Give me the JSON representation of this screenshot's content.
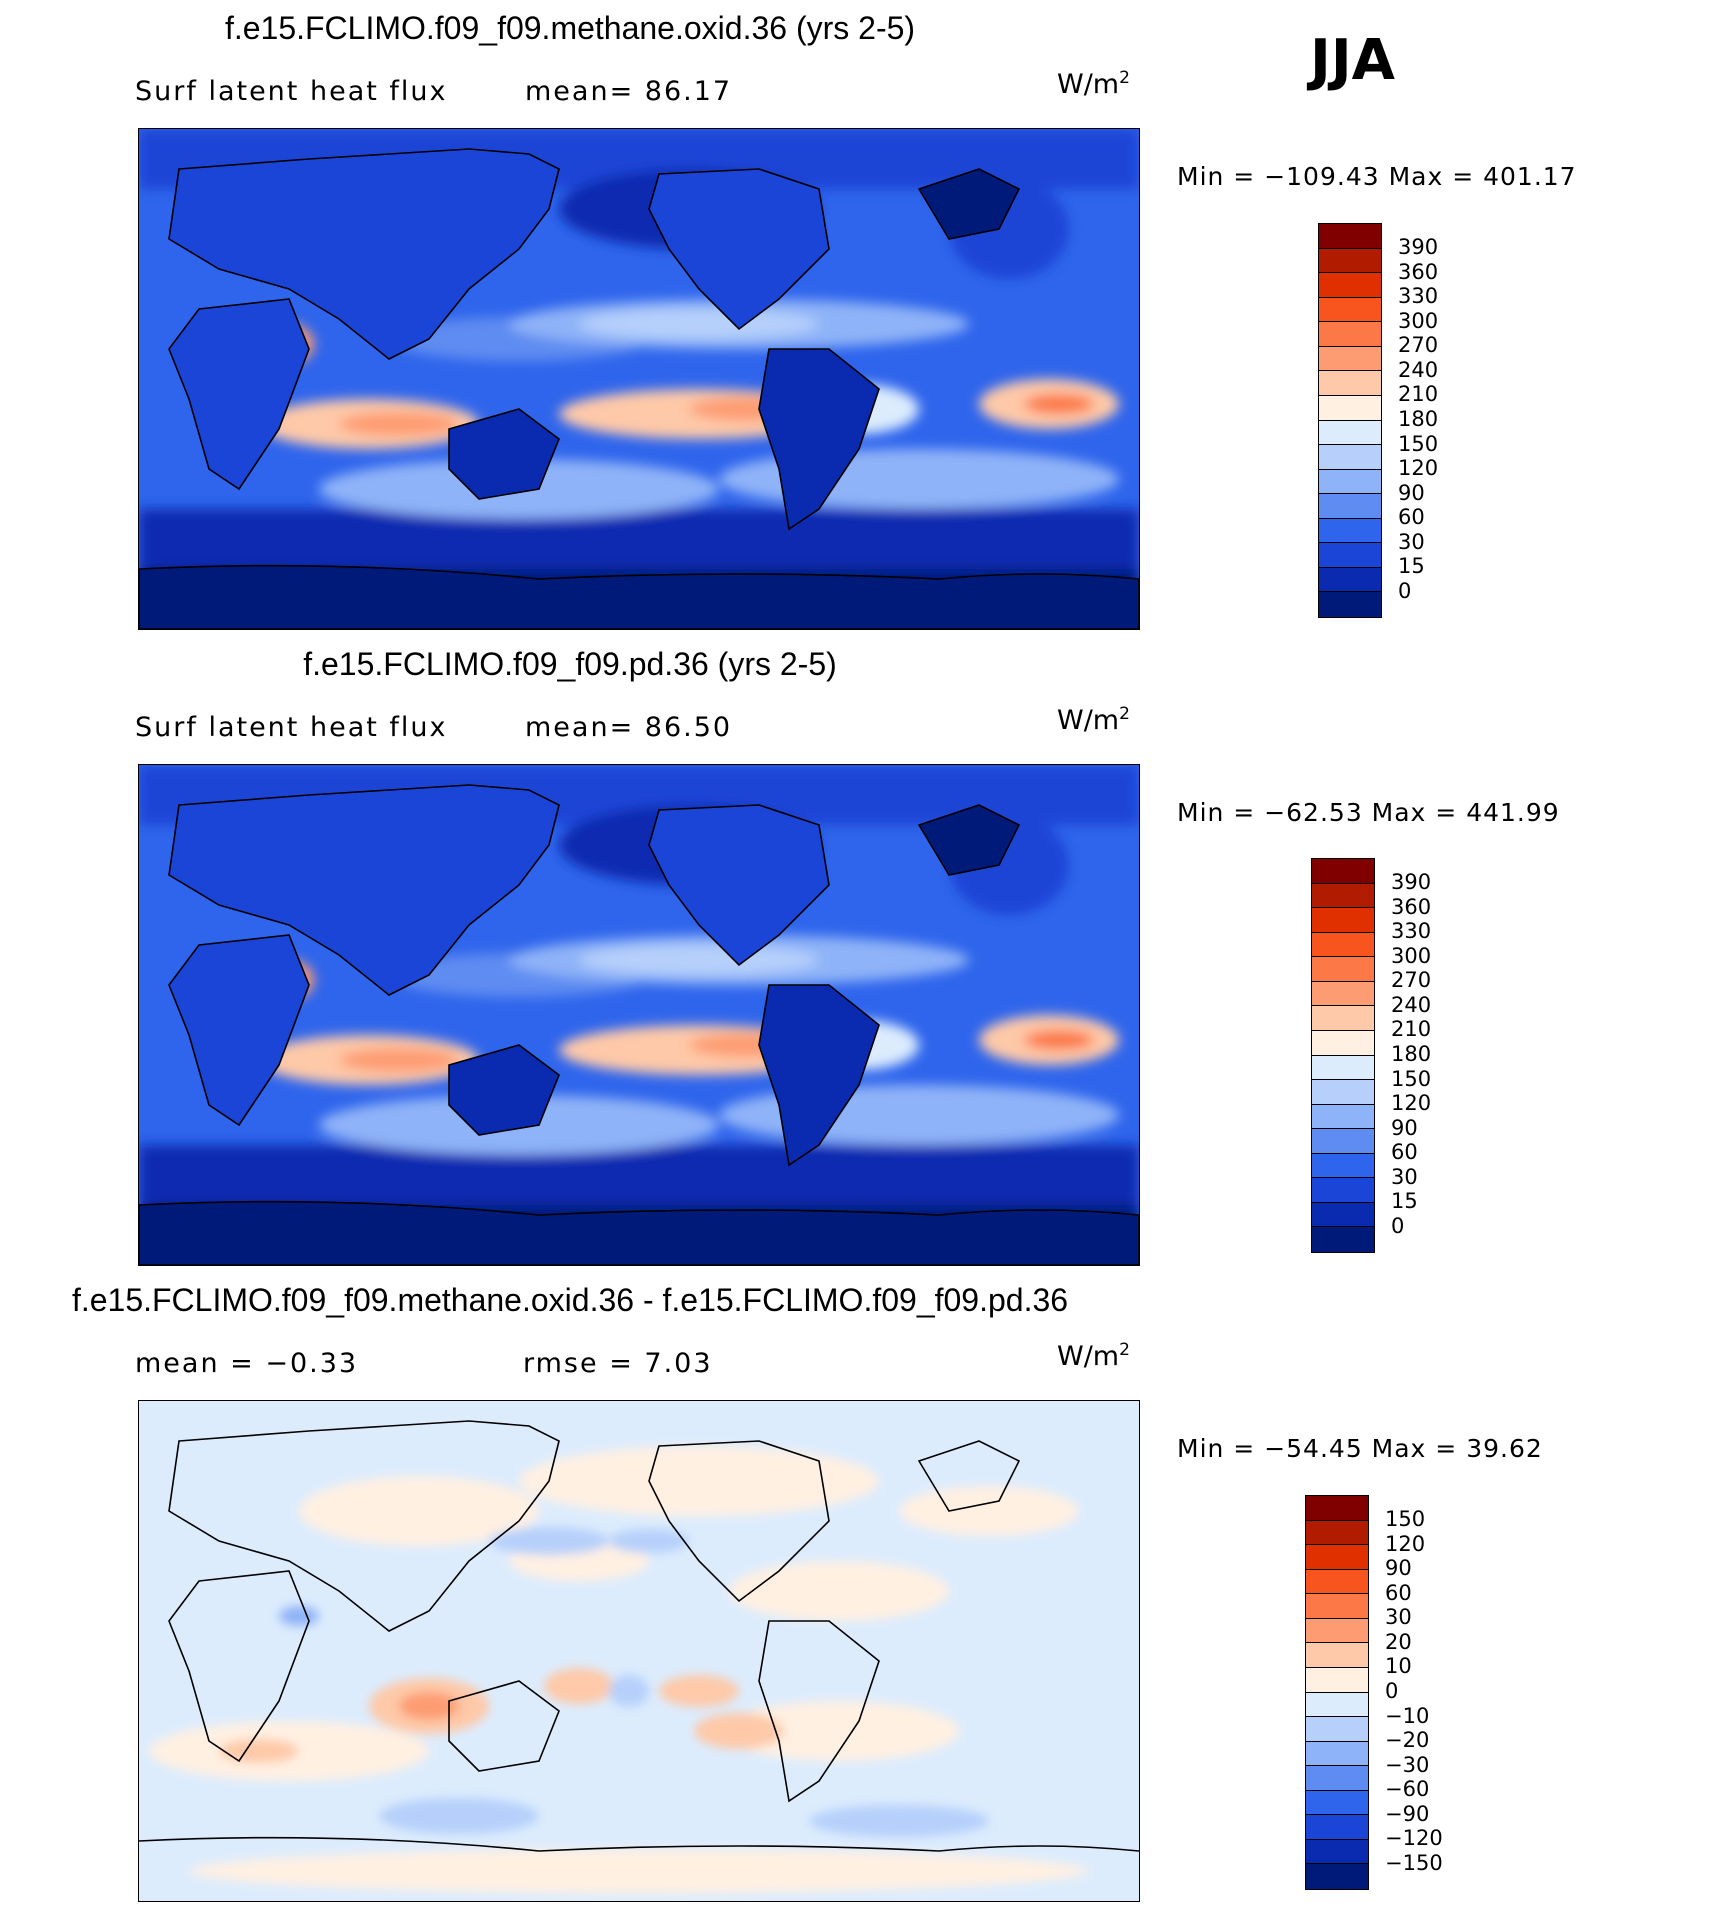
{
  "season": "JJA",
  "colorbars": {
    "abs_levels": [
      "390",
      "360",
      "330",
      "300",
      "270",
      "240",
      "210",
      "180",
      "150",
      "120",
      "90",
      "60",
      "30",
      "15",
      "0"
    ],
    "abs_colors": [
      "#800000",
      "#b11c00",
      "#e03000",
      "#f8551e",
      "#fc7846",
      "#fd9c72",
      "#fec9a8",
      "#fff0e2",
      "#dcecfd",
      "#b6d0fb",
      "#8fb3f8",
      "#5f8cf1",
      "#2f65ec",
      "#1a45d6",
      "#0a2bb0",
      "#001a7a"
    ],
    "diff_levels": [
      "150",
      "120",
      "90",
      "60",
      "30",
      "20",
      "10",
      "0",
      "−10",
      "−20",
      "−30",
      "−60",
      "−90",
      "−120",
      "−150"
    ],
    "diff_colors": [
      "#800000",
      "#b11c00",
      "#e03000",
      "#f8551e",
      "#fc7846",
      "#fd9c72",
      "#fec9a8",
      "#fff0e2",
      "#dcecfd",
      "#b6d0fb",
      "#8fb3f8",
      "#5f8cf1",
      "#2f65ec",
      "#1a45d6",
      "#0a2bb0",
      "#001a7a"
    ]
  },
  "panels": [
    {
      "title": "f.e15.FCLIMO.f09_f09.methane.oxid.36 (yrs 2-5)",
      "left_label": "Surf latent heat flux",
      "stat1": "mean=  86.17",
      "stat2": "",
      "units_base": "W/m",
      "units_exp": "2",
      "minmax": "Min = −109.43 Max = 401.17",
      "kind": "abs"
    },
    {
      "title": "f.e15.FCLIMO.f09_f09.pd.36 (yrs 2-5)",
      "left_label": "Surf latent heat flux",
      "stat1": "mean=  86.50",
      "stat2": "",
      "units_base": "W/m",
      "units_exp": "2",
      "minmax": "Min = −62.53 Max = 441.99",
      "kind": "abs"
    },
    {
      "title": "f.e15.FCLIMO.f09_f09.methane.oxid.36 - f.e15.FCLIMO.f09_f09.pd.36",
      "left_label": "mean =  −0.33",
      "stat1": "rmse =  7.03",
      "stat2": "",
      "units_base": "W/m",
      "units_exp": "2",
      "minmax": "Min = −54.45 Max =  39.62",
      "kind": "diff"
    }
  ]
}
